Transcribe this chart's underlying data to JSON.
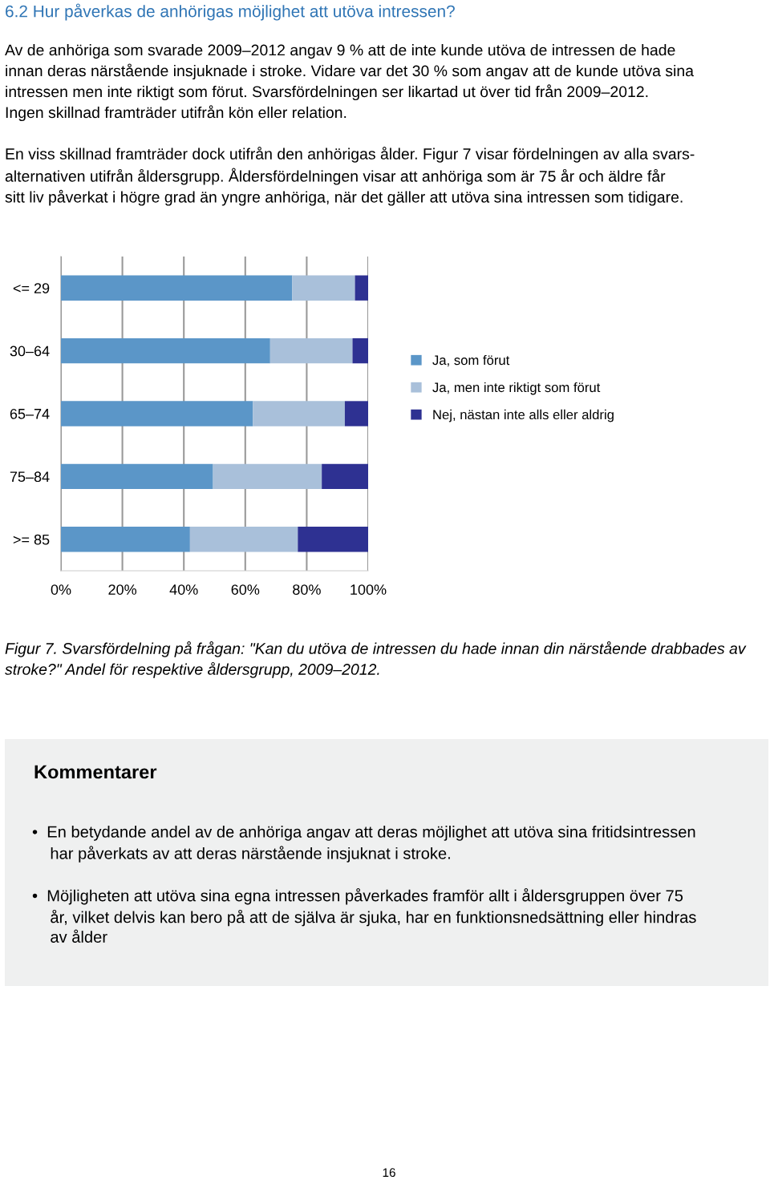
{
  "chart_data": {
    "type": "bar",
    "orientation": "horizontal",
    "stacked": true,
    "title": "6.2 Hur påverkas de anhörigas möjlighet att utöva intressen?",
    "categories": [
      "<= 29",
      "30–64",
      "65–74",
      "75–84",
      ">= 85"
    ],
    "series": [
      {
        "name": "Ja, som förut",
        "color": "#5b96c8",
        "values": [
          75.3,
          68.1,
          62.5,
          49.5,
          42.0
        ]
      },
      {
        "name": "Ja, men inte riktigt som förut",
        "color": "#a9c0da",
        "values": [
          20.4,
          26.8,
          29.9,
          35.4,
          35.1
        ]
      },
      {
        "name": "Nej, nästan inte alls eller aldrig",
        "color": "#2e3192",
        "values": [
          4.3,
          5.1,
          7.6,
          15.1,
          22.9
        ]
      }
    ],
    "xlim": [
      0,
      100
    ],
    "xticks": [
      {
        "value": 0,
        "label": "0%"
      },
      {
        "value": 20,
        "label": "20%"
      },
      {
        "value": 40,
        "label": "40%"
      },
      {
        "value": 60,
        "label": "60%"
      },
      {
        "value": 80,
        "label": "80%"
      },
      {
        "value": 100,
        "label": "100%"
      }
    ],
    "grid": "x",
    "legend": "right",
    "annotations": [
      "Av de anhöriga som svarade 2009–2012 angav 9 % att de inte kunde utöva de intressen de hade\ninnan deras närstående insjuknade i stroke. Vidare var det 30 % som angav att de kunde utöva sina\nintressen men inte riktigt som förut. Svarsfördelningen ser likartad ut över tid från 2009–2012.\nIngen skillnad framträder utifrån kön eller relation.",
      "En viss skillnad framträder dock utifrån den anhörigas ålder. Figur 7 visar fördelningen av alla svars-\nalternativen utifrån åldersgrupp. Åldersfördelningen visar att anhöriga som är 75 år och äldre får\nsitt liv påverkat i högre grad än yngre anhöriga, när det gäller att utöva sina intressen som tidigare.",
      "Figur 7. Svarsfördelning på frågan: \"Kan du utöva de intressen du hade innan din närstående drabbades av\nstroke?\" Andel för respektive åldersgrupp, 2009–2012.",
      "Kommentarer",
      "•  En betydande andel av de anhöriga angav att deras möjlighet att utöva sina fritidsintressen\n    har påverkats av att deras närstående insjuknat i stroke.",
      "•  Möjligheten att utöva sina egna intressen påverkades framför allt i åldersgruppen över 75\n    år, vilket delvis kan bero på att de själva är sjuka, har en funktionsnedsättning eller hindras\n    av ålder",
      "16"
    ]
  }
}
